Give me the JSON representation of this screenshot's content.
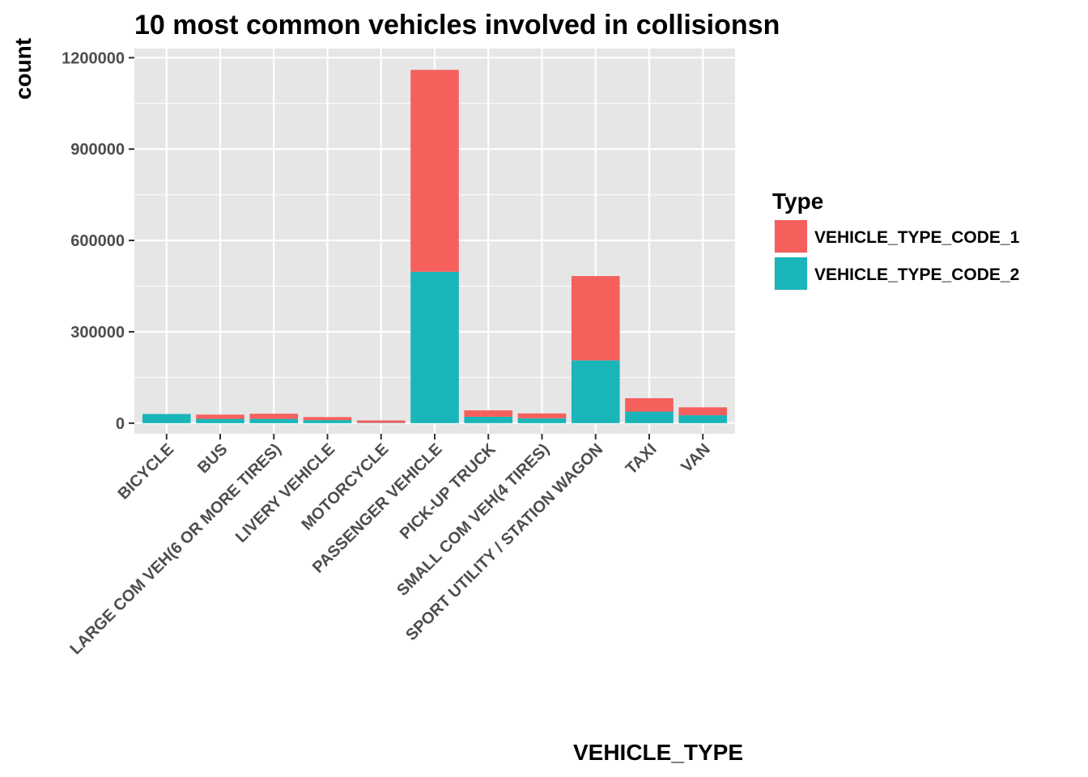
{
  "chart_data": {
    "type": "bar",
    "stacked": true,
    "title": "10 most common vehicles involved in collisionsn",
    "xlabel": "VEHICLE_TYPE",
    "ylabel": "count",
    "ylim": [
      -35000,
      1230000
    ],
    "yticks": [
      0,
      300000,
      600000,
      900000,
      1200000
    ],
    "ytick_labels": [
      "0",
      "300000",
      "600000",
      "900000",
      "1200000"
    ],
    "categories": [
      "BICYCLE",
      "BUS",
      "LARGE COM VEH(6 OR MORE TIRES)",
      "LIVERY VEHICLE",
      "MOTORCYCLE",
      "PASSENGER VEHICLE",
      "PICK-UP TRUCK",
      "SMALL COM VEH(4 TIRES)",
      "SPORT UTILITY / STATION WAGON",
      "TAXI",
      "VAN"
    ],
    "series": [
      {
        "name": "VEHICLE_TYPE_CODE_2",
        "color": "#19B5B9",
        "values": [
          30000,
          14000,
          14000,
          10000,
          1000,
          497000,
          21000,
          16000,
          206000,
          38000,
          26000
        ]
      },
      {
        "name": "VEHICLE_TYPE_CODE_1",
        "color": "#F5605D",
        "values": [
          0,
          14000,
          17000,
          10000,
          8000,
          663000,
          21000,
          16000,
          277000,
          44000,
          26000
        ]
      }
    ],
    "legend": {
      "title": "Type",
      "placement": "right",
      "entries": [
        {
          "label": "VEHICLE_TYPE_CODE_1",
          "color": "#F5605D"
        },
        {
          "label": "VEHICLE_TYPE_CODE_2",
          "color": "#19B5B9"
        }
      ]
    },
    "grid": true,
    "panel_background": "#E6E6E6",
    "grid_color": "#FFFFFF"
  }
}
